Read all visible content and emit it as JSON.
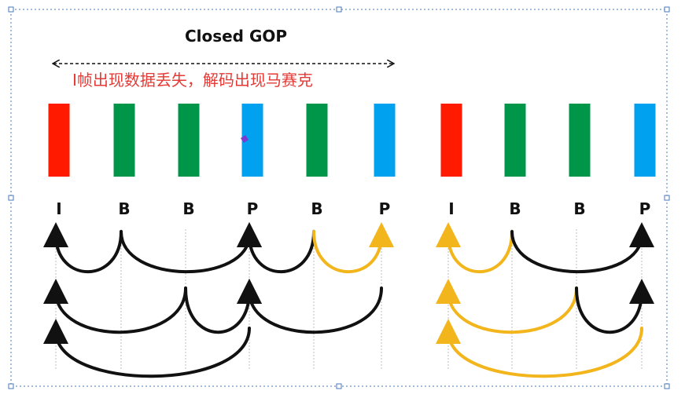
{
  "title": "Closed GOP",
  "note": "I帧出现数据丢失，解码出现马赛克",
  "colors": {
    "I": "#ff1a00",
    "B": "#00964a",
    "P": "#00a2ef",
    "arrow_ok": "#111111",
    "arrow_broken": "#f2b51c",
    "selection": "#4a78b8"
  },
  "frames": [
    {
      "type": "I",
      "label": "I"
    },
    {
      "type": "B",
      "label": "B"
    },
    {
      "type": "B",
      "label": "B"
    },
    {
      "type": "P",
      "label": "P"
    },
    {
      "type": "B",
      "label": "B"
    },
    {
      "type": "P",
      "label": "P"
    },
    {
      "type": "I",
      "label": "I"
    },
    {
      "type": "B",
      "label": "B"
    },
    {
      "type": "B",
      "label": "B"
    },
    {
      "type": "P",
      "label": "P"
    }
  ],
  "references": [
    {
      "from": 1,
      "to": 0,
      "row": 0,
      "status": "ok"
    },
    {
      "from": 1,
      "to": 3,
      "row": 0,
      "status": "ok"
    },
    {
      "from": 4,
      "to": 3,
      "row": 0,
      "status": "ok"
    },
    {
      "from": 4,
      "to": 5,
      "row": 0,
      "status": "broken"
    },
    {
      "from": 2,
      "to": 0,
      "row": 1,
      "status": "ok"
    },
    {
      "from": 2,
      "to": 3,
      "row": 1,
      "status": "ok"
    },
    {
      "from": 5,
      "to": 3,
      "row": 1,
      "status": "ok"
    },
    {
      "from": 3,
      "to": 0,
      "row": 2,
      "status": "ok"
    },
    {
      "from": 7,
      "to": 6,
      "row": 0,
      "status": "broken"
    },
    {
      "from": 7,
      "to": 9,
      "row": 0,
      "status": "ok"
    },
    {
      "from": 8,
      "to": 6,
      "row": 1,
      "status": "broken"
    },
    {
      "from": 8,
      "to": 9,
      "row": 1,
      "status": "ok"
    },
    {
      "from": 9,
      "to": 6,
      "row": 2,
      "status": "broken"
    }
  ]
}
